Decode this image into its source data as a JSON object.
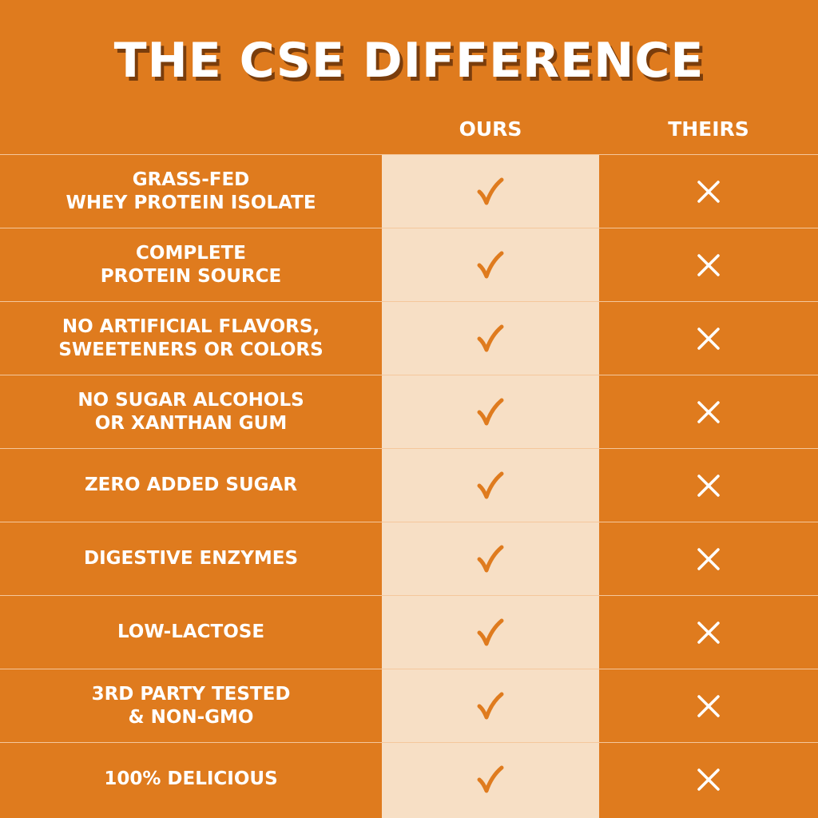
{
  "title": "THE CSE DIFFERENCE",
  "columns": {
    "ours": "OURS",
    "theirs": "THEIRS"
  },
  "colors": {
    "background": "#df7b1e",
    "ours_column": "#f7dfc5",
    "text": "#ffffff",
    "check": "#df7b1e",
    "cross": "#ffffff"
  },
  "rows": [
    {
      "label": "GRASS-FED\nWHEY PROTEIN ISOLATE",
      "ours": "check",
      "theirs": "cross"
    },
    {
      "label": "COMPLETE\nPROTEIN SOURCE",
      "ours": "check",
      "theirs": "cross"
    },
    {
      "label": "NO ARTIFICIAL FLAVORS,\nSWEETENERS OR COLORS",
      "ours": "check",
      "theirs": "cross"
    },
    {
      "label": "NO SUGAR ALCOHOLS\nOR XANTHAN GUM",
      "ours": "check",
      "theirs": "cross"
    },
    {
      "label": "ZERO ADDED SUGAR",
      "ours": "check",
      "theirs": "cross"
    },
    {
      "label": "DIGESTIVE ENZYMES",
      "ours": "check",
      "theirs": "cross"
    },
    {
      "label": "LOW-LACTOSE",
      "ours": "check",
      "theirs": "cross"
    },
    {
      "label": "3RD PARTY TESTED\n& NON-GMO",
      "ours": "check",
      "theirs": "cross"
    },
    {
      "label": "100% DELICIOUS",
      "ours": "check",
      "theirs": "cross"
    }
  ]
}
